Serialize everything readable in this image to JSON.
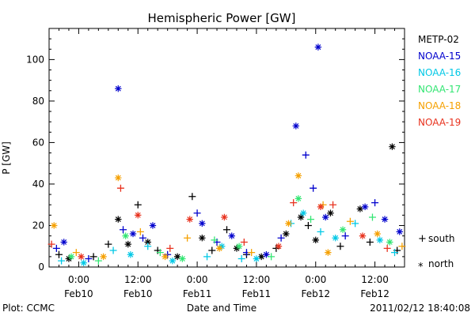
{
  "page": {
    "footer_left": "Plot: CCMC",
    "footer_right": "2011/02/12 18:40:08"
  },
  "chart_data": {
    "type": "scatter",
    "title": "Hemispheric Power [GW]",
    "xlabel": "Date and Time",
    "ylabel": "P [GW]",
    "xlim": [
      "2011-02-09 18:00",
      "2011-02-12 18:00"
    ],
    "ylim": [
      0,
      115
    ],
    "y_ticks": [
      0,
      20,
      40,
      60,
      80,
      100
    ],
    "x_ticks": [
      {
        "time": "2011-02-10 00:00",
        "label1": "0:00",
        "label2": "Feb10"
      },
      {
        "time": "2011-02-10 12:00",
        "label1": "12:00",
        "label2": "Feb10"
      },
      {
        "time": "2011-02-11 00:00",
        "label1": "0:00",
        "label2": "Feb11"
      },
      {
        "time": "2011-02-11 12:00",
        "label1": "12:00",
        "label2": "Feb11"
      },
      {
        "time": "2011-02-12 00:00",
        "label1": "0:00",
        "label2": "Feb12"
      },
      {
        "time": "2011-02-12 12:00",
        "label1": "12:00",
        "label2": "Feb12"
      }
    ],
    "grid": false,
    "legend_position": "right",
    "markers": [
      {
        "symbol": "+",
        "label": "south"
      },
      {
        "symbol": "*",
        "label": "north"
      }
    ],
    "series": [
      {
        "name": "METP-02",
        "color": "#000000",
        "points": [
          {
            "t": "2011-02-09 20:00",
            "v": 6,
            "h": "south"
          },
          {
            "t": "2011-02-09 22:00",
            "v": 4,
            "h": "north"
          },
          {
            "t": "2011-02-10 03:00",
            "v": 5,
            "h": "south"
          },
          {
            "t": "2011-02-10 06:00",
            "v": 11,
            "h": "south"
          },
          {
            "t": "2011-02-10 08:00",
            "v": 23,
            "h": "north"
          },
          {
            "t": "2011-02-10 10:00",
            "v": 11,
            "h": "north"
          },
          {
            "t": "2011-02-10 12:00",
            "v": 30,
            "h": "south"
          },
          {
            "t": "2011-02-10 14:00",
            "v": 12,
            "h": "north"
          },
          {
            "t": "2011-02-10 16:00",
            "v": 8,
            "h": "south"
          },
          {
            "t": "2011-02-10 20:00",
            "v": 5,
            "h": "north"
          },
          {
            "t": "2011-02-10 23:00",
            "v": 34,
            "h": "south"
          },
          {
            "t": "2011-02-11 01:00",
            "v": 14,
            "h": "north"
          },
          {
            "t": "2011-02-11 03:00",
            "v": 8,
            "h": "south"
          },
          {
            "t": "2011-02-11 06:00",
            "v": 18,
            "h": "south"
          },
          {
            "t": "2011-02-11 08:00",
            "v": 9,
            "h": "north"
          },
          {
            "t": "2011-02-11 10:00",
            "v": 6,
            "h": "south"
          },
          {
            "t": "2011-02-11 13:00",
            "v": 5,
            "h": "north"
          },
          {
            "t": "2011-02-11 16:00",
            "v": 9,
            "h": "south"
          },
          {
            "t": "2011-02-11 18:00",
            "v": 16,
            "h": "north"
          },
          {
            "t": "2011-02-11 21:00",
            "v": 24,
            "h": "north"
          },
          {
            "t": "2011-02-11 22:30",
            "v": 20,
            "h": "south"
          },
          {
            "t": "2011-02-12 00:00",
            "v": 13,
            "h": "north"
          },
          {
            "t": "2011-02-12 03:00",
            "v": 26,
            "h": "north"
          },
          {
            "t": "2011-02-12 05:00",
            "v": 10,
            "h": "south"
          },
          {
            "t": "2011-02-12 09:00",
            "v": 28,
            "h": "north"
          },
          {
            "t": "2011-02-12 11:00",
            "v": 12,
            "h": "south"
          },
          {
            "t": "2011-02-12 15:30",
            "v": 58,
            "h": "north"
          },
          {
            "t": "2011-02-12 16:30",
            "v": 8,
            "h": "south"
          }
        ]
      },
      {
        "name": "NOAA-15",
        "color": "#0000cd",
        "points": [
          {
            "t": "2011-02-09 19:30",
            "v": 9,
            "h": "south"
          },
          {
            "t": "2011-02-09 21:00",
            "v": 12,
            "h": "north"
          },
          {
            "t": "2011-02-10 02:00",
            "v": 4,
            "h": "south"
          },
          {
            "t": "2011-02-10 08:00",
            "v": 86,
            "h": "north"
          },
          {
            "t": "2011-02-10 09:00",
            "v": 18,
            "h": "south"
          },
          {
            "t": "2011-02-10 11:00",
            "v": 16,
            "h": "north"
          },
          {
            "t": "2011-02-10 13:00",
            "v": 14,
            "h": "south"
          },
          {
            "t": "2011-02-10 15:00",
            "v": 20,
            "h": "north"
          },
          {
            "t": "2011-02-10 18:00",
            "v": 6,
            "h": "south"
          },
          {
            "t": "2011-02-11 00:00",
            "v": 26,
            "h": "south"
          },
          {
            "t": "2011-02-11 01:00",
            "v": 21,
            "h": "north"
          },
          {
            "t": "2011-02-11 04:00",
            "v": 12,
            "h": "south"
          },
          {
            "t": "2011-02-11 07:00",
            "v": 15,
            "h": "north"
          },
          {
            "t": "2011-02-11 10:00",
            "v": 7,
            "h": "south"
          },
          {
            "t": "2011-02-11 14:00",
            "v": 6,
            "h": "north"
          },
          {
            "t": "2011-02-11 17:00",
            "v": 14,
            "h": "south"
          },
          {
            "t": "2011-02-11 20:00",
            "v": 68,
            "h": "north"
          },
          {
            "t": "2011-02-11 22:00",
            "v": 54,
            "h": "south"
          },
          {
            "t": "2011-02-11 23:30",
            "v": 38,
            "h": "south"
          },
          {
            "t": "2011-02-12 00:30",
            "v": 106,
            "h": "north"
          },
          {
            "t": "2011-02-12 02:00",
            "v": 24,
            "h": "north"
          },
          {
            "t": "2011-02-12 06:00",
            "v": 15,
            "h": "south"
          },
          {
            "t": "2011-02-12 10:00",
            "v": 29,
            "h": "north"
          },
          {
            "t": "2011-02-12 12:00",
            "v": 31,
            "h": "south"
          },
          {
            "t": "2011-02-12 14:00",
            "v": 23,
            "h": "north"
          },
          {
            "t": "2011-02-12 17:00",
            "v": 17,
            "h": "north"
          }
        ]
      },
      {
        "name": "NOAA-16",
        "color": "#00c8e6",
        "points": [
          {
            "t": "2011-02-09 20:30",
            "v": 3,
            "h": "south"
          },
          {
            "t": "2011-02-10 01:00",
            "v": 2,
            "h": "north"
          },
          {
            "t": "2011-02-10 07:00",
            "v": 8,
            "h": "south"
          },
          {
            "t": "2011-02-10 10:30",
            "v": 6,
            "h": "north"
          },
          {
            "t": "2011-02-10 14:00",
            "v": 10,
            "h": "south"
          },
          {
            "t": "2011-02-10 19:00",
            "v": 3,
            "h": "north"
          },
          {
            "t": "2011-02-11 02:00",
            "v": 5,
            "h": "south"
          },
          {
            "t": "2011-02-11 05:00",
            "v": 10,
            "h": "north"
          },
          {
            "t": "2011-02-11 09:00",
            "v": 4,
            "h": "south"
          },
          {
            "t": "2011-02-11 12:00",
            "v": 4,
            "h": "north"
          },
          {
            "t": "2011-02-11 19:00",
            "v": 21,
            "h": "south"
          },
          {
            "t": "2011-02-11 21:30",
            "v": 26,
            "h": "north"
          },
          {
            "t": "2011-02-12 01:00",
            "v": 17,
            "h": "south"
          },
          {
            "t": "2011-02-12 04:00",
            "v": 14,
            "h": "north"
          },
          {
            "t": "2011-02-12 08:00",
            "v": 21,
            "h": "south"
          },
          {
            "t": "2011-02-12 13:00",
            "v": 13,
            "h": "north"
          },
          {
            "t": "2011-02-12 16:00",
            "v": 7,
            "h": "south"
          }
        ]
      },
      {
        "name": "NOAA-17",
        "color": "#33e673",
        "points": [
          {
            "t": "2011-02-09 22:30",
            "v": 5,
            "h": "north"
          },
          {
            "t": "2011-02-10 04:00",
            "v": 3,
            "h": "south"
          },
          {
            "t": "2011-02-10 09:30",
            "v": 15,
            "h": "north"
          },
          {
            "t": "2011-02-10 16:30",
            "v": 7,
            "h": "south"
          },
          {
            "t": "2011-02-10 21:00",
            "v": 4,
            "h": "north"
          },
          {
            "t": "2011-02-11 03:30",
            "v": 13,
            "h": "south"
          },
          {
            "t": "2011-02-11 08:30",
            "v": 10,
            "h": "north"
          },
          {
            "t": "2011-02-11 15:00",
            "v": 5,
            "h": "south"
          },
          {
            "t": "2011-02-11 20:30",
            "v": 33,
            "h": "north"
          },
          {
            "t": "2011-02-11 23:00",
            "v": 23,
            "h": "south"
          },
          {
            "t": "2011-02-12 05:30",
            "v": 18,
            "h": "north"
          },
          {
            "t": "2011-02-12 11:30",
            "v": 24,
            "h": "south"
          },
          {
            "t": "2011-02-12 15:00",
            "v": 12,
            "h": "north"
          }
        ]
      },
      {
        "name": "NOAA-18",
        "color": "#f5a000",
        "points": [
          {
            "t": "2011-02-09 19:00",
            "v": 20,
            "h": "north"
          },
          {
            "t": "2011-02-09 23:30",
            "v": 7,
            "h": "south"
          },
          {
            "t": "2011-02-10 05:00",
            "v": 5,
            "h": "north"
          },
          {
            "t": "2011-02-10 08:00",
            "v": 43,
            "h": "north"
          },
          {
            "t": "2011-02-10 12:30",
            "v": 17,
            "h": "south"
          },
          {
            "t": "2011-02-10 17:30",
            "v": 5,
            "h": "north"
          },
          {
            "t": "2011-02-10 22:00",
            "v": 14,
            "h": "south"
          },
          {
            "t": "2011-02-11 04:30",
            "v": 9,
            "h": "north"
          },
          {
            "t": "2011-02-11 11:00",
            "v": 7,
            "h": "south"
          },
          {
            "t": "2011-02-11 18:30",
            "v": 21,
            "h": "north"
          },
          {
            "t": "2011-02-11 20:30",
            "v": 44,
            "h": "north"
          },
          {
            "t": "2011-02-12 01:30",
            "v": 30,
            "h": "south"
          },
          {
            "t": "2011-02-12 02:30",
            "v": 7,
            "h": "north"
          },
          {
            "t": "2011-02-12 07:00",
            "v": 22,
            "h": "south"
          },
          {
            "t": "2011-02-12 12:30",
            "v": 16,
            "h": "north"
          },
          {
            "t": "2011-02-12 17:30",
            "v": 10,
            "h": "south"
          }
        ]
      },
      {
        "name": "NOAA-19",
        "color": "#e8321e",
        "points": [
          {
            "t": "2011-02-09 18:30",
            "v": 11,
            "h": "south"
          },
          {
            "t": "2011-02-10 00:30",
            "v": 5,
            "h": "north"
          },
          {
            "t": "2011-02-10 08:30",
            "v": 38,
            "h": "south"
          },
          {
            "t": "2011-02-10 12:00",
            "v": 25,
            "h": "north"
          },
          {
            "t": "2011-02-10 18:30",
            "v": 9,
            "h": "south"
          },
          {
            "t": "2011-02-10 22:30",
            "v": 23,
            "h": "north"
          },
          {
            "t": "2011-02-11 05:30",
            "v": 24,
            "h": "north"
          },
          {
            "t": "2011-02-11 09:30",
            "v": 12,
            "h": "south"
          },
          {
            "t": "2011-02-11 16:30",
            "v": 10,
            "h": "north"
          },
          {
            "t": "2011-02-11 19:30",
            "v": 31,
            "h": "south"
          },
          {
            "t": "2011-02-12 01:00",
            "v": 29,
            "h": "north"
          },
          {
            "t": "2011-02-12 03:30",
            "v": 30,
            "h": "south"
          },
          {
            "t": "2011-02-12 09:30",
            "v": 15,
            "h": "north"
          },
          {
            "t": "2011-02-12 14:30",
            "v": 9,
            "h": "south"
          }
        ]
      }
    ]
  }
}
